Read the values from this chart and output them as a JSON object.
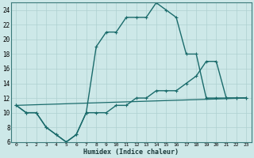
{
  "xlabel": "Humidex (Indice chaleur)",
  "bg_color": "#cde8e8",
  "line_color": "#1a6b6b",
  "grid_color": "#aed0d0",
  "xlim": [
    -0.5,
    23.5
  ],
  "ylim": [
    6,
    25
  ],
  "xticks": [
    0,
    1,
    2,
    3,
    4,
    5,
    6,
    7,
    8,
    9,
    10,
    11,
    12,
    13,
    14,
    15,
    16,
    17,
    18,
    19,
    20,
    21,
    22,
    23
  ],
  "yticks": [
    6,
    8,
    10,
    12,
    14,
    16,
    18,
    20,
    22,
    24
  ],
  "curve1_x": [
    0,
    1,
    2,
    3,
    4,
    5,
    6,
    7,
    8,
    9,
    10,
    11,
    12,
    13,
    14,
    15,
    16,
    17,
    18,
    19,
    20,
    21,
    22,
    23
  ],
  "curve1_y": [
    11,
    10,
    10,
    8,
    7,
    6,
    7,
    10,
    19,
    21,
    21,
    23,
    23,
    23,
    25,
    24,
    23,
    18,
    18,
    12,
    12,
    12,
    12,
    12
  ],
  "curve2_x": [
    0,
    1,
    2,
    3,
    4,
    5,
    6,
    7,
    8,
    9,
    10,
    11,
    12,
    13,
    14,
    15,
    16,
    17,
    18,
    19,
    20,
    21,
    22,
    23
  ],
  "curve2_y": [
    11,
    10,
    10,
    8,
    7,
    6,
    7,
    10,
    10,
    10,
    11,
    11,
    12,
    12,
    13,
    13,
    13,
    14,
    15,
    17,
    17,
    12,
    12,
    12
  ],
  "curve3_x": [
    0,
    23
  ],
  "curve3_y": [
    11,
    12
  ]
}
